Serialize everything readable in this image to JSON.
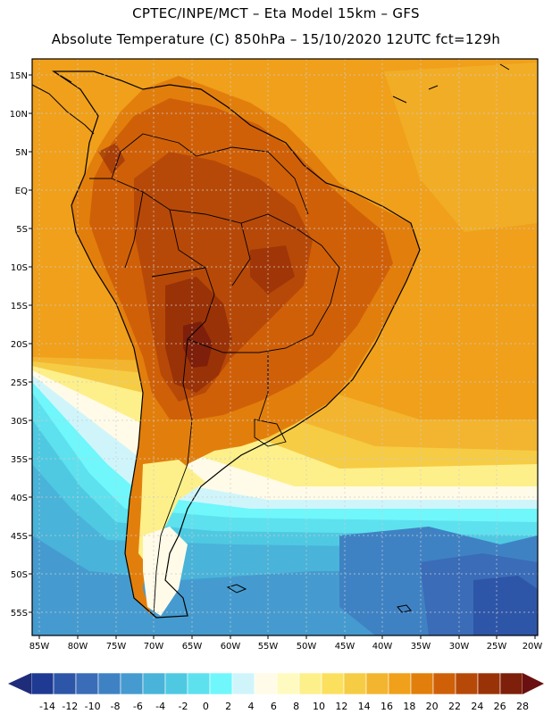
{
  "header": {
    "title_line1": "CPTEC/INPE/MCT –  Eta Model 15km – GFS",
    "title_line2": "Absolute Temperature (C) 850hPa – 15/10/2020 12UTC fct=129h"
  },
  "map": {
    "lat_labels": [
      "15N",
      "10N",
      "5N",
      "EQ",
      "5S",
      "10S",
      "15S",
      "20S",
      "25S",
      "30S",
      "35S",
      "40S",
      "45S",
      "50S",
      "55S"
    ],
    "lon_labels": [
      "85W",
      "80W",
      "75W",
      "70W",
      "65W",
      "60W",
      "55W",
      "50W",
      "45W",
      "40W",
      "35W",
      "30W",
      "25W",
      "20W"
    ],
    "field": "Absolute Temperature (C) 850hPa",
    "model": "Eta Model 15km",
    "region": "South America"
  },
  "colorbar": {
    "labels": [
      "-14",
      "-12",
      "-10",
      "-8",
      "-6",
      "-4",
      "-2",
      "0",
      "2",
      "4",
      "6",
      "8",
      "10",
      "12",
      "14",
      "16",
      "18",
      "20",
      "22",
      "24",
      "26",
      "28"
    ],
    "colors": [
      "#1f3a93",
      "#2e56a8",
      "#3a6cb8",
      "#3f82c4",
      "#459bcf",
      "#49b3d9",
      "#4fc9e2",
      "#5ee1ee",
      "#6ff7fb",
      "#cff5fb",
      "#fffbe8",
      "#fffac0",
      "#fdf08a",
      "#fbe05e",
      "#f6cc45",
      "#f3b52f",
      "#f0a01a",
      "#e27f0c",
      "#d06008",
      "#b74908",
      "#9a3207",
      "#7d1f0a"
    ],
    "left_arrow_color": "#1f2c7a",
    "right_arrow_color": "#6a1010"
  }
}
